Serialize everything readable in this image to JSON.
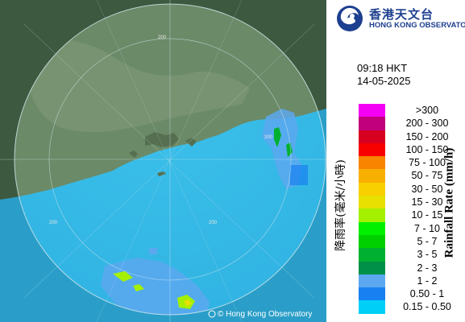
{
  "logo": {
    "name_cn": "香港天文台",
    "name_en": "HONG KONG OBSERVATORY",
    "emblem": "hko-emblem-icon"
  },
  "time": "09:18 HKT",
  "date": "14-05-2025",
  "legend_title_en": "Rainfall Rate (mm/h)",
  "legend_title_cn": "降雨率(毫米/小時)",
  "legend": [
    {
      "label": ">300",
      "color": "#f400f4"
    },
    {
      "label": "200 - 300",
      "color": "#c0007c"
    },
    {
      "label": "150 - 200",
      "color": "#d80020"
    },
    {
      "label": "100 - 150",
      "color": "#f80000"
    },
    {
      "label": "75 - 100",
      "color": "#f88400"
    },
    {
      "label": "50 - 75",
      "color": "#f8b000"
    },
    {
      "label": "30 - 50",
      "color": "#f8d000"
    },
    {
      "label": "15 - 30",
      "color": "#e8e000"
    },
    {
      "label": "10 - 15",
      "color": "#a4f000"
    },
    {
      "label": "7 - 10",
      "color": "#00f000"
    },
    {
      "label": "5 - 7",
      "color": "#00d000"
    },
    {
      "label": "3 - 5",
      "color": "#00b030"
    },
    {
      "label": "2 - 3",
      "color": "#009048"
    },
    {
      "label": "1 - 2",
      "color": "#5ca8f0"
    },
    {
      "label": "0.50 - 1",
      "color": "#1880f0"
    },
    {
      "label": "0.15 - 0.50",
      "color": "#00d0f8"
    }
  ],
  "ring_labels": [
    "200",
    "200",
    "200",
    "200"
  ],
  "copyright": "© Hong Kong Observatory"
}
